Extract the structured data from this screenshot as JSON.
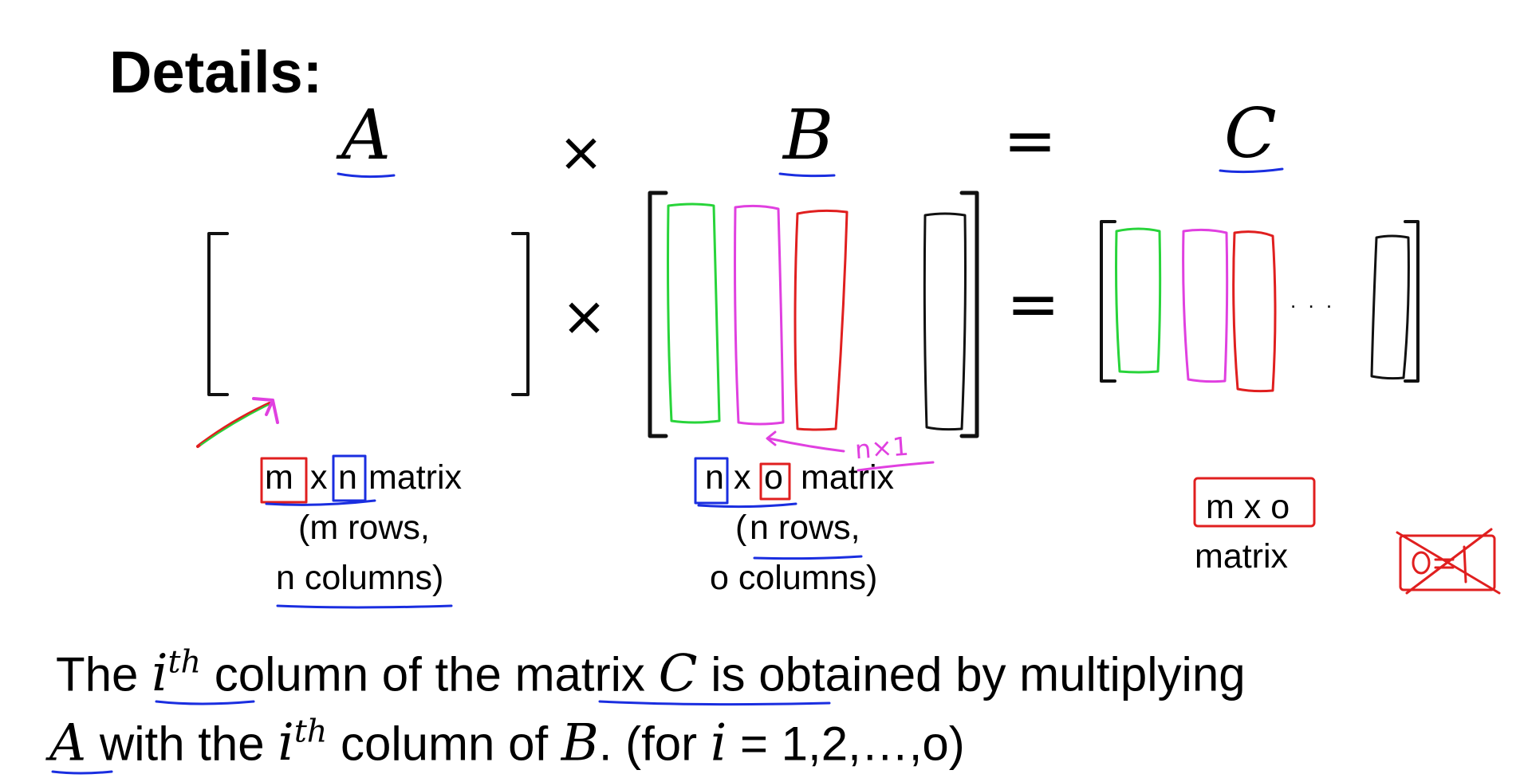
{
  "heading": "Details:",
  "equation": {
    "a_var": "A",
    "times_1": "×",
    "b_var": "B",
    "equals_1": "=",
    "c_var": "C",
    "times_2": "×",
    "equals_2": "=",
    "dots": ". . ."
  },
  "labels": {
    "a_dim_m": "m",
    "a_dim_x": "x",
    "a_dim_n": "n",
    "a_dim_word": "matrix",
    "a_rows": "(m rows,",
    "a_cols": "n columns)",
    "b_dim_n": "n",
    "b_dim_x": "x",
    "b_dim_o": "o",
    "b_dim_word": "matrix",
    "b_rows_open": "(",
    "b_rows": "n rows,",
    "b_cols": "o columns)",
    "c_dim": "m x o",
    "c_word": "matrix",
    "annot_nx1": "n×1"
  },
  "sentence": {
    "line1_a": "The ",
    "i": "i",
    "th": "th",
    "line1_b": "column of the ",
    "line1_matrix": "matrix ",
    "c": "C",
    "line1_c": " is obtained by multiplying",
    "a": "A",
    "line2_a": " with the ",
    "line2_b": " column of ",
    "b": "B",
    "line2_c": ". (for ",
    "line2_d": " = 1,2,…,o)"
  },
  "colors": {
    "blue": "#1a2ee0",
    "red": "#e01f1f",
    "green": "#28d43a",
    "magenta": "#e040e0",
    "black": "#111111"
  }
}
